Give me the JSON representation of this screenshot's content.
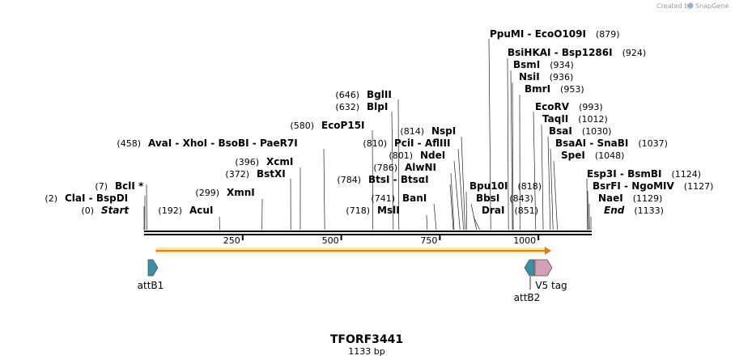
{
  "credit": {
    "prefix": "Created by",
    "brand": "SnapGene"
  },
  "plasmid": {
    "name": "TFORF3441",
    "length_label": "1133 bp",
    "length": 1133
  },
  "axis": {
    "ticks": [
      250,
      500,
      750,
      1000
    ]
  },
  "orf": {
    "start": 7,
    "end": 1133
  },
  "features": [
    {
      "name": "attB1",
      "start": 2,
      "end": 25,
      "direction": "forward",
      "color": "#3a8ea6"
    },
    {
      "name": "attB2",
      "start": 1094,
      "end": 1118,
      "direction": "reverse",
      "color": "#3a8ea6"
    },
    {
      "name": "V5 tag",
      "start": 1118,
      "end": 1133,
      "direction": "forward",
      "color": "#d4a0b8"
    }
  ],
  "sites": [
    {
      "parts": [
        "Start"
      ],
      "italic": true,
      "pos": "(0)",
      "site": 0
    },
    {
      "parts": [
        "ClaI",
        "BspDI"
      ],
      "pos": "(2)",
      "site": 2
    },
    {
      "parts": [
        "BclI *"
      ],
      "pos": "(7)",
      "site": 7
    },
    {
      "parts": [
        "AcuI"
      ],
      "pos": "(192)",
      "site": 192
    },
    {
      "parts": [
        "XmnI"
      ],
      "pos": "(299)",
      "site": 299
    },
    {
      "parts": [
        "BstXI"
      ],
      "pos": "(372)",
      "site": 372
    },
    {
      "parts": [
        "XcmI"
      ],
      "pos": "(396)",
      "site": 396
    },
    {
      "parts": [
        "AvaI",
        "XhoI",
        "BsoBI",
        "PaeR7I"
      ],
      "pos": "(458)",
      "site": 458
    },
    {
      "parts": [
        "EcoP15I"
      ],
      "pos": "(580)",
      "site": 580
    },
    {
      "parts": [
        "BlpI"
      ],
      "pos": "(632)",
      "site": 632
    },
    {
      "parts": [
        "BglII"
      ],
      "pos": "(646)",
      "site": 646
    },
    {
      "parts": [
        "MslI"
      ],
      "pos": "(718)",
      "site": 718
    },
    {
      "parts": [
        "BanI"
      ],
      "pos": "(741)",
      "site": 741
    },
    {
      "parts": [
        "BtsI",
        "BtsαI"
      ],
      "pos": "(784)",
      "site": 784
    },
    {
      "parts": [
        "AlwNI"
      ],
      "pos": "(786)",
      "site": 786
    },
    {
      "parts": [
        "NdeI"
      ],
      "pos": "(801)",
      "site": 801
    },
    {
      "parts": [
        "PciI",
        "AflIII"
      ],
      "pos": "(810)",
      "site": 810
    },
    {
      "parts": [
        "NspI"
      ],
      "pos": "(814)",
      "site": 814
    },
    {
      "parts": [
        "Bpu10I"
      ],
      "pos": "(818)",
      "site": 818
    },
    {
      "parts": [
        "BbsI"
      ],
      "pos": "(843)",
      "site": 843
    },
    {
      "parts": [
        "DraI"
      ],
      "pos": "(851)",
      "site": 851
    },
    {
      "parts": [
        "PpuMI",
        "EcoO109I"
      ],
      "pos": "(879)",
      "site": 879
    },
    {
      "parts": [
        "BsiHKAI",
        "Bsp1286I"
      ],
      "pos": "(924)",
      "site": 924
    },
    {
      "parts": [
        "BsmI"
      ],
      "pos": "(934)",
      "site": 934
    },
    {
      "parts": [
        "NsiI"
      ],
      "pos": "(936)",
      "site": 936
    },
    {
      "parts": [
        "BmrI"
      ],
      "pos": "(953)",
      "site": 953
    },
    {
      "parts": [
        "EcoRV"
      ],
      "pos": "(993)",
      "site": 993
    },
    {
      "parts": [
        "TaqII"
      ],
      "pos": "(1012)",
      "site": 1012
    },
    {
      "parts": [
        "BsaI"
      ],
      "pos": "(1030)",
      "site": 1030
    },
    {
      "parts": [
        "BsaAI",
        "SnaBI"
      ],
      "pos": "(1037)",
      "site": 1037
    },
    {
      "parts": [
        "SpeI"
      ],
      "pos": "(1048)",
      "site": 1048
    },
    {
      "parts": [
        "Esp3I",
        "BsmBI"
      ],
      "pos": "(1124)",
      "site": 1124
    },
    {
      "parts": [
        "BsrFI",
        "NgoMIV"
      ],
      "pos": "(1127)",
      "site": 1127
    },
    {
      "parts": [
        "NaeI"
      ],
      "pos": "(1129)",
      "site": 1129
    },
    {
      "parts": [
        "End"
      ],
      "italic": true,
      "pos": "(1133)",
      "site": 1133
    }
  ]
}
